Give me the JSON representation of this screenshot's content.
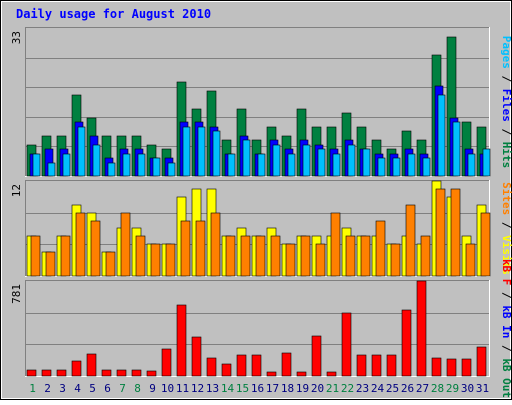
{
  "chart_data": {
    "type": "bar",
    "title": "Daily usage for August 2010",
    "categories": [
      "1",
      "2",
      "3",
      "4",
      "5",
      "6",
      "7",
      "8",
      "9",
      "10",
      "11",
      "12",
      "13",
      "14",
      "15",
      "16",
      "17",
      "18",
      "19",
      "20",
      "21",
      "22",
      "23",
      "24",
      "25",
      "26",
      "27",
      "28",
      "29",
      "30",
      "31"
    ],
    "weekend_days": [
      "1",
      "7",
      "8",
      "14",
      "15",
      "21",
      "22",
      "28",
      "29"
    ],
    "panels": [
      {
        "id": "hits-files-pages",
        "scale_max": 33,
        "scale_label": "33",
        "series": [
          {
            "name": "Hits",
            "color": "#008040",
            "values": [
              7,
              9,
              9,
              18,
              13,
              9,
              9,
              9,
              7,
              6,
              21,
              15,
              19,
              8,
              15,
              8,
              11,
              9,
              15,
              11,
              11,
              14,
              11,
              8,
              6,
              10,
              8,
              27,
              31,
              12,
              11
            ]
          },
          {
            "name": "Files",
            "color": "#0000ff",
            "values": [
              5,
              6,
              6,
              12,
              9,
              4,
              6,
              6,
              4,
              4,
              12,
              12,
              11,
              5,
              9,
              5,
              8,
              6,
              8,
              7,
              6,
              8,
              6,
              5,
              5,
              6,
              5,
              20,
              13,
              6,
              5
            ]
          },
          {
            "name": "Pages",
            "color": "#00c0ff",
            "values": [
              5,
              3,
              5,
              11,
              7,
              3,
              5,
              5,
              4,
              3,
              11,
              11,
              10,
              5,
              8,
              5,
              7,
              5,
              7,
              6,
              5,
              7,
              6,
              4,
              4,
              5,
              4,
              18,
              12,
              5,
              6
            ]
          }
        ]
      },
      {
        "id": "visits-sites",
        "scale_max": 12,
        "scale_label": "12",
        "series": [
          {
            "name": "Visits",
            "color": "#ffff00",
            "values": [
              5,
              3,
              5,
              9,
              8,
              3,
              6,
              6,
              4,
              4,
              10,
              11,
              11,
              5,
              6,
              5,
              6,
              4,
              5,
              5,
              5,
              6,
              5,
              5,
              4,
              5,
              4,
              12,
              10,
              5,
              9
            ]
          },
          {
            "name": "Sites",
            "color": "#ff8000",
            "values": [
              5,
              3,
              5,
              8,
              7,
              3,
              8,
              5,
              4,
              4,
              7,
              7,
              8,
              5,
              5,
              5,
              5,
              4,
              5,
              4,
              8,
              5,
              5,
              7,
              4,
              9,
              5,
              11,
              11,
              4,
              8
            ]
          }
        ]
      },
      {
        "id": "kb",
        "scale_max": 781,
        "scale_label": "781",
        "series": [
          {
            "name": "kB F",
            "color": "#ff0000",
            "values": [
              50,
              50,
              50,
              120,
              180,
              50,
              50,
              50,
              40,
              220,
              580,
              320,
              150,
              100,
              170,
              170,
              30,
              190,
              30,
              330,
              30,
              520,
              170,
              170,
              170,
              540,
              780,
              150,
              140,
              140,
              240
            ]
          },
          {
            "name": "kB In",
            "color": "#0000ff",
            "values": [
              0,
              0,
              0,
              0,
              0,
              0,
              0,
              0,
              0,
              0,
              0,
              0,
              0,
              0,
              0,
              0,
              0,
              0,
              0,
              0,
              0,
              0,
              0,
              0,
              0,
              0,
              0,
              0,
              0,
              0,
              0
            ]
          },
          {
            "name": "kB Out",
            "color": "#008040",
            "values": [
              0,
              0,
              0,
              0,
              0,
              0,
              0,
              0,
              0,
              0,
              0,
              0,
              0,
              0,
              0,
              0,
              0,
              0,
              0,
              0,
              0,
              0,
              0,
              0,
              0,
              0,
              0,
              0,
              0,
              0,
              0
            ]
          }
        ]
      }
    ],
    "right_labels": [
      {
        "panel": "hits-files-pages",
        "parts": [
          {
            "text": "Pages",
            "color": "#00c0ff"
          },
          {
            "text": " / ",
            "color": "#000000"
          },
          {
            "text": "Files",
            "color": "#0000ff"
          },
          {
            "text": " / ",
            "color": "#000000"
          },
          {
            "text": "Hits",
            "color": "#008040"
          }
        ]
      },
      {
        "panel": "visits-sites",
        "parts": [
          {
            "text": "Sites",
            "color": "#ff8000"
          },
          {
            "text": " / ",
            "color": "#000000"
          },
          {
            "text": "Visits",
            "color": "#ffff00"
          }
        ]
      },
      {
        "panel": "kb",
        "parts": [
          {
            "text": "kB F",
            "color": "#ff0000"
          },
          {
            "text": " / ",
            "color": "#000000"
          },
          {
            "text": "kB In",
            "color": "#0000ff"
          },
          {
            "text": " / ",
            "color": "#000000"
          },
          {
            "text": "kB Out",
            "color": "#008040"
          }
        ]
      }
    ],
    "colors": {
      "background": "#c0c0c0",
      "title": "#0000ff",
      "weekday_label": "#000080",
      "weekend_label": "#008040",
      "gridline": "#808080"
    },
    "grid": true
  }
}
